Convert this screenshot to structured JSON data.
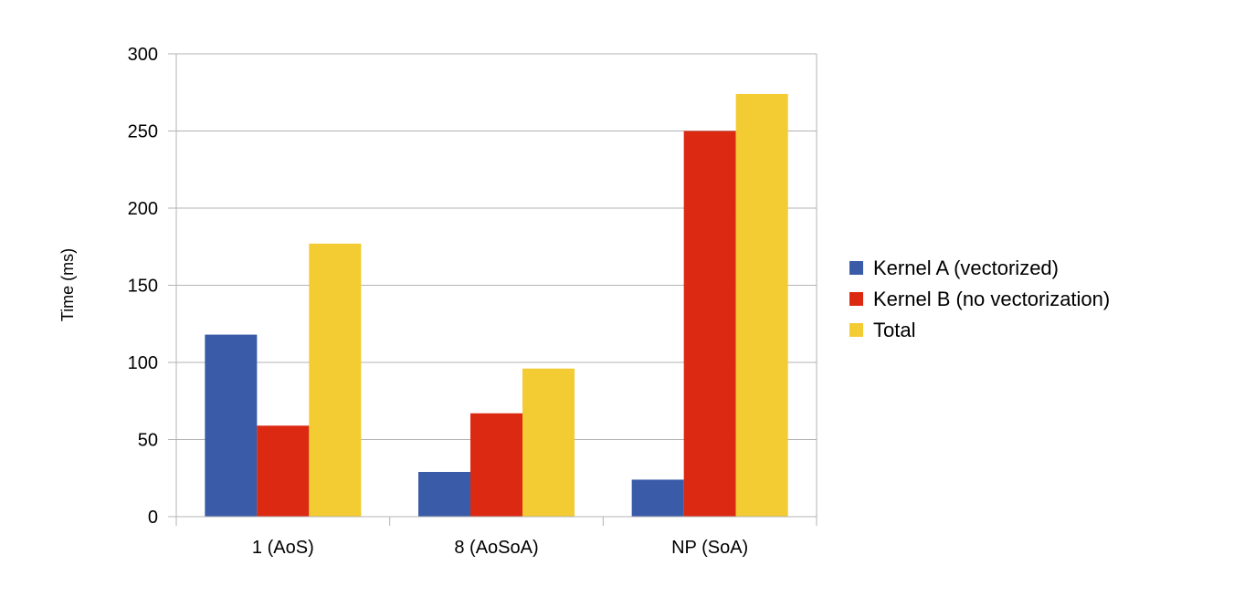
{
  "chart_data": {
    "type": "bar",
    "title": "",
    "xlabel": "",
    "ylabel": "Time (ms)",
    "ylim": [
      0,
      300
    ],
    "yticks": [
      0,
      50,
      100,
      150,
      200,
      250,
      300
    ],
    "grid": true,
    "legend_position": "right",
    "categories": [
      "1 (AoS)",
      "8 (AoSoA)",
      "NP (SoA)"
    ],
    "series": [
      {
        "name": "Kernel A (vectorized)",
        "color": "#3a5ba8",
        "values": [
          118,
          29,
          24
        ]
      },
      {
        "name": "Kernel B (no vectorization)",
        "color": "#db2912",
        "values": [
          59,
          67,
          250
        ]
      },
      {
        "name": "Total",
        "color": "#f3cb32",
        "values": [
          177,
          96,
          274
        ]
      }
    ]
  }
}
